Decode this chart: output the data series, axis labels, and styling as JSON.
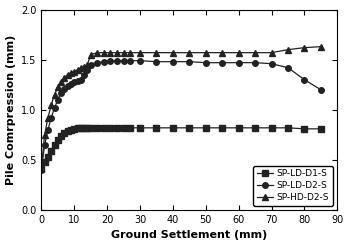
{
  "title": "",
  "xlabel": "Ground Settlement (mm)",
  "ylabel": "Pile Comrpression (mm)",
  "xlim": [
    0,
    90
  ],
  "ylim": [
    0.0,
    2.0
  ],
  "xticks": [
    0,
    10,
    20,
    30,
    40,
    50,
    60,
    70,
    80,
    90
  ],
  "yticks": [
    0.0,
    0.5,
    1.0,
    1.5,
    2.0
  ],
  "series": [
    {
      "label": "SP-LD-D1-S",
      "marker": "s",
      "color": "#222222",
      "x": [
        0,
        1,
        2,
        3,
        4,
        5,
        6,
        7,
        8,
        9,
        10,
        11,
        12,
        13,
        14,
        15,
        17,
        19,
        21,
        23,
        25,
        27,
        30,
        35,
        40,
        45,
        50,
        55,
        60,
        65,
        70,
        75,
        80,
        85
      ],
      "y": [
        0.41,
        0.48,
        0.53,
        0.59,
        0.65,
        0.7,
        0.74,
        0.77,
        0.79,
        0.8,
        0.81,
        0.82,
        0.82,
        0.82,
        0.82,
        0.82,
        0.82,
        0.82,
        0.82,
        0.82,
        0.82,
        0.82,
        0.82,
        0.82,
        0.82,
        0.82,
        0.82,
        0.82,
        0.82,
        0.82,
        0.82,
        0.82,
        0.81,
        0.81
      ]
    },
    {
      "label": "SP-LD-D2-S",
      "marker": "o",
      "color": "#222222",
      "x": [
        0,
        1,
        2,
        3,
        4,
        5,
        6,
        7,
        8,
        9,
        10,
        11,
        12,
        13,
        14,
        15,
        17,
        19,
        21,
        23,
        25,
        27,
        30,
        35,
        40,
        45,
        50,
        55,
        60,
        65,
        70,
        75,
        80,
        85
      ],
      "y": [
        0.4,
        0.65,
        0.8,
        0.92,
        1.02,
        1.1,
        1.17,
        1.21,
        1.24,
        1.26,
        1.28,
        1.29,
        1.3,
        1.35,
        1.4,
        1.45,
        1.47,
        1.48,
        1.49,
        1.49,
        1.49,
        1.49,
        1.49,
        1.48,
        1.48,
        1.48,
        1.47,
        1.47,
        1.47,
        1.47,
        1.46,
        1.42,
        1.3,
        1.2
      ]
    },
    {
      "label": "SP-HD-D2-S",
      "marker": "^",
      "color": "#222222",
      "x": [
        0,
        1,
        2,
        3,
        4,
        5,
        6,
        7,
        8,
        9,
        10,
        11,
        12,
        13,
        14,
        15,
        17,
        19,
        21,
        23,
        25,
        27,
        30,
        35,
        40,
        45,
        50,
        55,
        60,
        65,
        70,
        75,
        80,
        85
      ],
      "y": [
        0.42,
        0.75,
        0.92,
        1.05,
        1.15,
        1.23,
        1.28,
        1.32,
        1.35,
        1.37,
        1.38,
        1.4,
        1.42,
        1.43,
        1.45,
        1.55,
        1.57,
        1.57,
        1.57,
        1.57,
        1.57,
        1.57,
        1.57,
        1.57,
        1.57,
        1.57,
        1.57,
        1.57,
        1.57,
        1.57,
        1.57,
        1.6,
        1.62,
        1.63
      ]
    }
  ],
  "legend_loc": "lower right",
  "markersize": 4,
  "linewidth": 0.9,
  "figure_facecolor": "#ffffff",
  "axes_facecolor": "#ffffff",
  "tick_fontsize": 7,
  "label_fontsize": 8,
  "label_fontweight": "bold"
}
